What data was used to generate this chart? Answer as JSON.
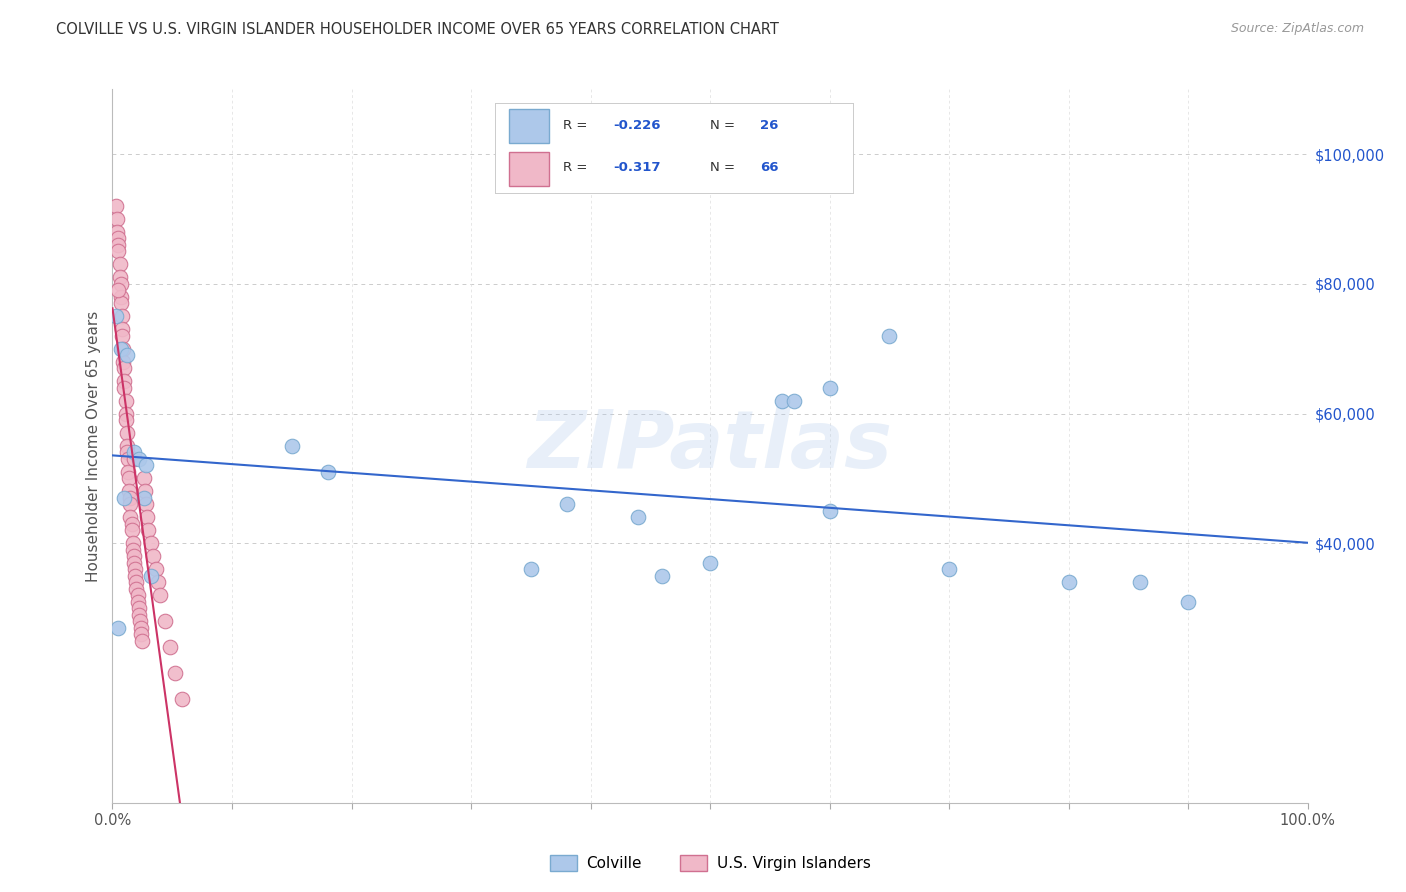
{
  "title": "COLVILLE VS U.S. VIRGIN ISLANDER HOUSEHOLDER INCOME OVER 65 YEARS CORRELATION CHART",
  "source": "Source: ZipAtlas.com",
  "ylabel": "Householder Income Over 65 years",
  "colville_color": "#adc8ea",
  "colville_edge": "#7aaad0",
  "virgin_color": "#f0b8c8",
  "virgin_edge": "#d07090",
  "blue_line_color": "#3366cc",
  "pink_line_color": "#cc3366",
  "watermark": "ZIPatlas",
  "xlim": [
    0.0,
    1.0
  ],
  "ylim": [
    0,
    110000
  ],
  "yticks": [
    40000,
    60000,
    80000,
    100000
  ],
  "ytick_labels": [
    "$40,000",
    "$60,000",
    "$80,000",
    "$100,000"
  ],
  "colville_R": -0.226,
  "colville_N": 26,
  "virgin_R": -0.317,
  "virgin_N": 66,
  "colville_x": [
    0.003,
    0.007,
    0.012,
    0.018,
    0.022,
    0.028,
    0.15,
    0.18,
    0.38,
    0.44,
    0.56,
    0.57,
    0.6,
    0.65,
    0.005,
    0.01,
    0.026,
    0.032,
    0.5,
    0.6,
    0.7,
    0.8,
    0.86,
    0.9,
    0.46,
    0.35
  ],
  "colville_y": [
    75000,
    70000,
    69000,
    54000,
    53000,
    52000,
    55000,
    51000,
    46000,
    44000,
    62000,
    62000,
    64000,
    72000,
    27000,
    47000,
    47000,
    35000,
    37000,
    45000,
    36000,
    34000,
    34000,
    31000,
    35000,
    36000
  ],
  "virgin_x": [
    0.003,
    0.004,
    0.004,
    0.005,
    0.005,
    0.005,
    0.006,
    0.006,
    0.007,
    0.007,
    0.007,
    0.008,
    0.008,
    0.008,
    0.009,
    0.009,
    0.01,
    0.01,
    0.01,
    0.011,
    0.011,
    0.011,
    0.012,
    0.012,
    0.012,
    0.013,
    0.013,
    0.014,
    0.014,
    0.015,
    0.015,
    0.015,
    0.016,
    0.016,
    0.017,
    0.017,
    0.018,
    0.018,
    0.019,
    0.019,
    0.02,
    0.02,
    0.021,
    0.021,
    0.022,
    0.022,
    0.023,
    0.024,
    0.024,
    0.025,
    0.026,
    0.027,
    0.028,
    0.029,
    0.03,
    0.032,
    0.034,
    0.036,
    0.038,
    0.04,
    0.044,
    0.048,
    0.052,
    0.058,
    0.005,
    0.018
  ],
  "virgin_y": [
    92000,
    90000,
    88000,
    87000,
    86000,
    85000,
    83000,
    81000,
    80000,
    78000,
    77000,
    75000,
    73000,
    72000,
    70000,
    68000,
    67000,
    65000,
    64000,
    62000,
    60000,
    59000,
    57000,
    55000,
    54000,
    53000,
    51000,
    50000,
    48000,
    47000,
    46000,
    44000,
    43000,
    42000,
    40000,
    39000,
    38000,
    37000,
    36000,
    35000,
    34000,
    33000,
    32000,
    31000,
    30000,
    29000,
    28000,
    27000,
    26000,
    25000,
    50000,
    48000,
    46000,
    44000,
    42000,
    40000,
    38000,
    36000,
    34000,
    32000,
    28000,
    24000,
    20000,
    16000,
    79000,
    53000
  ]
}
